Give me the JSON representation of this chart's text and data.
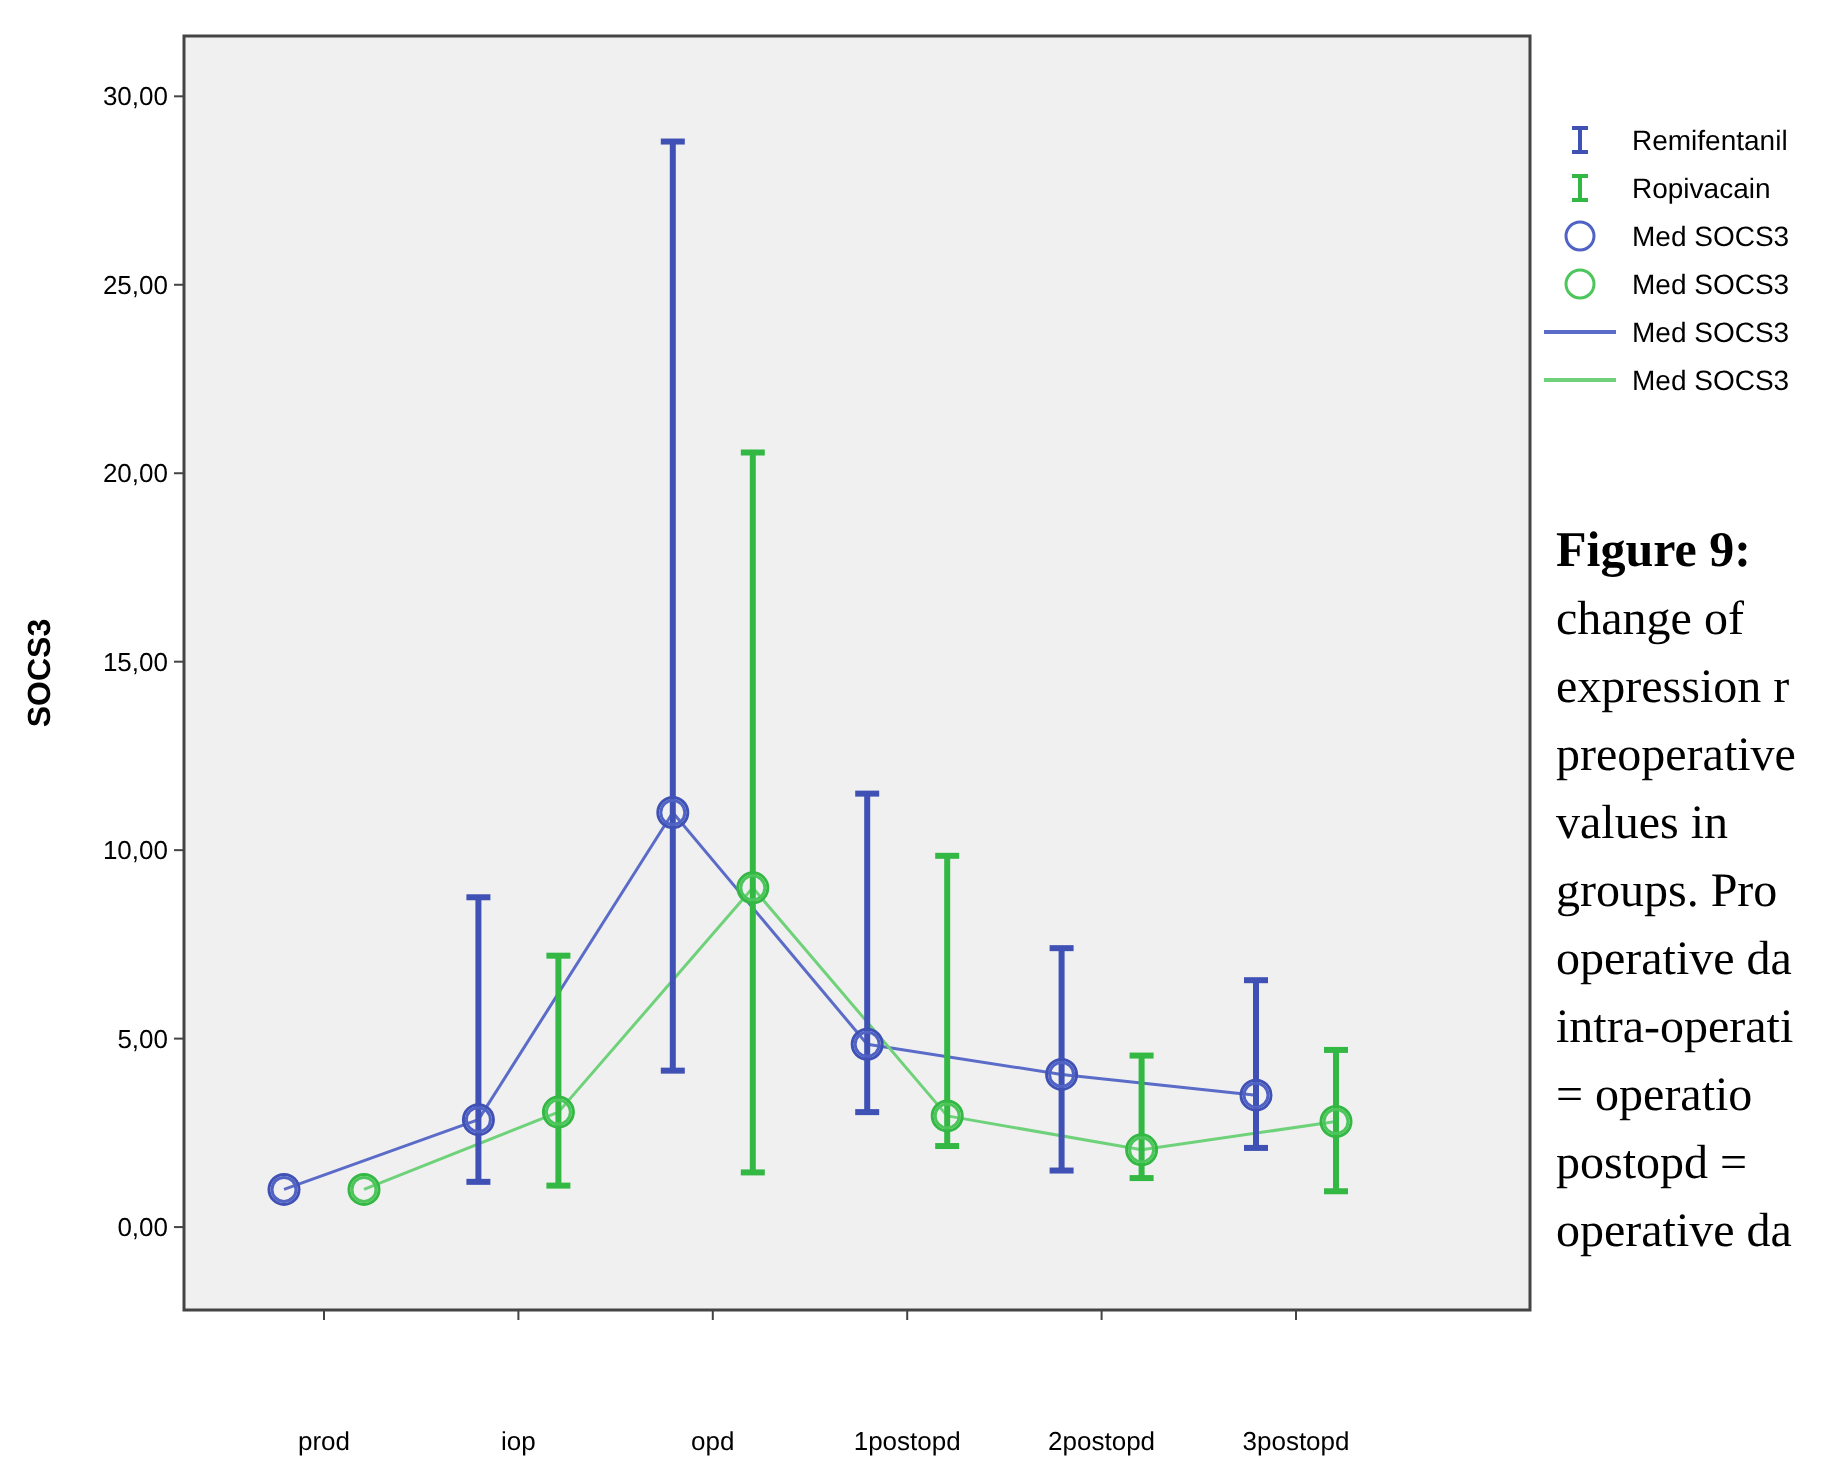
{
  "chart_data": {
    "type": "line",
    "ylabel": "SOCS3",
    "categories": [
      "prod",
      "iop",
      "opd",
      "1postopd",
      "2postopd",
      "3postopd"
    ],
    "ylim": [
      -2.2,
      31.6
    ],
    "yticks": [
      {
        "value": 0,
        "label": "0,00"
      },
      {
        "value": 5,
        "label": "5,00"
      },
      {
        "value": 10,
        "label": "10,00"
      },
      {
        "value": 15,
        "label": "15,00"
      },
      {
        "value": 20,
        "label": "20,00"
      },
      {
        "value": 25,
        "label": "25,00"
      },
      {
        "value": 30,
        "label": "30,00"
      }
    ],
    "grid": false,
    "legend": "right",
    "series": [
      {
        "name": "Remifentanil",
        "type": "scatter",
        "marker": "circle",
        "color": "#3f51b5",
        "values": [
          1.0,
          2.85,
          11.0,
          4.85,
          4.05,
          3.5
        ],
        "errors": [
          null,
          [
            1.2,
            8.75
          ],
          [
            4.15,
            28.8
          ],
          [
            3.05,
            11.5
          ],
          [
            1.5,
            7.4
          ],
          [
            2.1,
            6.55
          ]
        ]
      },
      {
        "name": "Ropivacain",
        "type": "scatter",
        "marker": "circle",
        "color": "#33b844",
        "values": [
          1.0,
          3.05,
          9.0,
          2.95,
          2.05,
          2.8
        ],
        "errors": [
          null,
          [
            1.1,
            7.2
          ],
          [
            1.45,
            20.55
          ],
          [
            2.15,
            9.85
          ],
          [
            1.3,
            4.55
          ],
          [
            0.95,
            4.7
          ]
        ]
      },
      {
        "name": "Med SOCS3",
        "type": "scatter",
        "marker": "circle",
        "color": "#5063c4",
        "values": [
          1.0,
          2.85,
          11.0,
          4.85,
          4.05,
          3.5
        ]
      },
      {
        "name": "Med SOCS3",
        "type": "scatter",
        "marker": "circle",
        "color": "#4cc65a",
        "values": [
          1.0,
          3.05,
          9.0,
          2.95,
          2.05,
          2.8
        ]
      },
      {
        "name": "Med SOCS3",
        "marker": "none",
        "line_style": "solid",
        "color": "#5b6cc8",
        "values": [
          1.0,
          2.85,
          11.0,
          4.85,
          4.05,
          3.5
        ]
      },
      {
        "name": "Med SOCS3",
        "type": "line",
        "marker": "none",
        "line_style": "solid",
        "color": "#6fd27a",
        "values": [
          1.0,
          3.05,
          9.0,
          2.95,
          2.05,
          2.8
        ]
      }
    ],
    "annotations": [
      "Figure 9:",
      "change of",
      "expression r",
      "preoperative",
      "values in",
      "groups. Pro",
      "operative da",
      "intra-operati",
      "= operatio",
      "postopd =",
      "operative da"
    ]
  }
}
